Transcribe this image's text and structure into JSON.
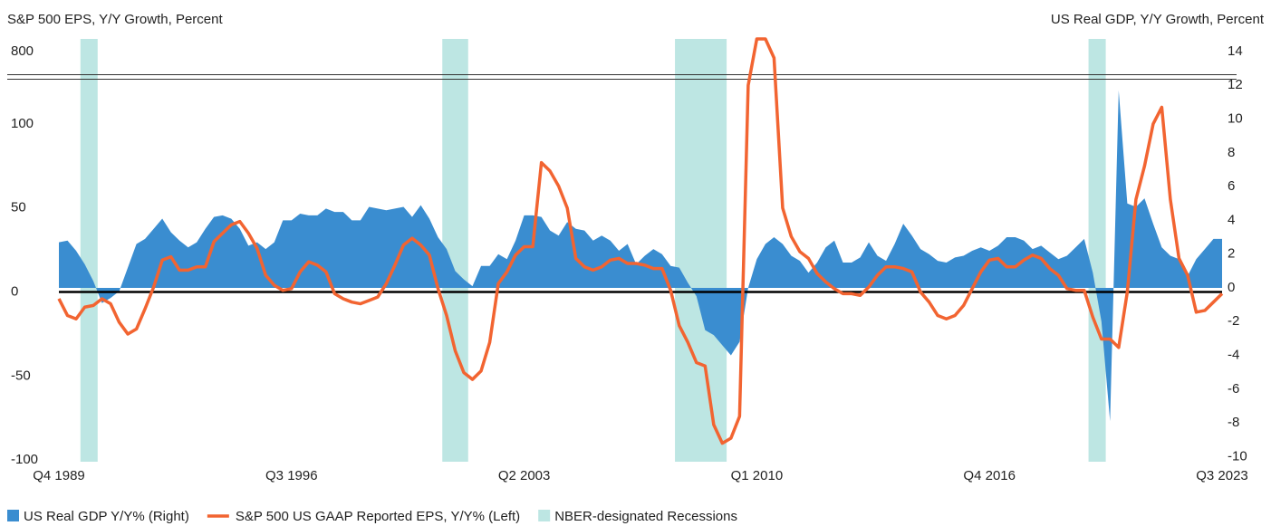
{
  "chart_data": {
    "type": "combo",
    "y_label": "S&P 500 EPS, Y/Y Growth, Percent",
    "y2_label": "US Real GDP, Y/Y Growth, Percent",
    "categories": [
      "Q4 1989",
      null,
      null,
      null,
      null,
      null,
      null,
      null,
      null,
      null,
      null,
      null,
      null,
      null,
      null,
      null,
      null,
      null,
      null,
      null,
      null,
      null,
      null,
      null,
      null,
      null,
      null,
      "Q3 1996",
      null,
      null,
      null,
      null,
      null,
      null,
      null,
      null,
      null,
      null,
      null,
      null,
      null,
      null,
      null,
      null,
      null,
      null,
      null,
      null,
      null,
      null,
      null,
      null,
      null,
      null,
      "Q2 2003",
      null,
      null,
      null,
      null,
      null,
      null,
      null,
      null,
      null,
      null,
      null,
      null,
      null,
      null,
      null,
      null,
      null,
      null,
      null,
      null,
      null,
      null,
      null,
      null,
      null,
      null,
      "Q1 2010",
      null,
      null,
      null,
      null,
      null,
      null,
      null,
      null,
      null,
      null,
      null,
      null,
      null,
      null,
      null,
      null,
      null,
      null,
      null,
      null,
      null,
      null,
      null,
      null,
      null,
      null,
      "Q4 2016",
      null,
      null,
      null,
      null,
      null,
      null,
      null,
      null,
      null,
      null,
      null,
      null,
      null,
      null,
      null,
      null,
      null,
      null,
      null,
      null,
      null,
      null,
      null,
      null,
      null,
      null,
      "Q3 2023"
    ],
    "series": [
      {
        "name": "US Real GDP Y/Y% (Right)",
        "type": "area",
        "axis": "y2",
        "color": "#3a8dd0",
        "values": [
          2.7,
          2.8,
          2.2,
          1.4,
          0.4,
          -0.9,
          -0.6,
          -0.2,
          1.2,
          2.6,
          2.9,
          3.5,
          4.1,
          3.3,
          2.8,
          2.4,
          2.7,
          3.5,
          4.2,
          4.3,
          4.1,
          3.5,
          2.5,
          2.7,
          2.3,
          2.7,
          4.0,
          4.0,
          4.4,
          4.3,
          4.3,
          4.7,
          4.5,
          4.5,
          4.0,
          4.0,
          4.8,
          4.7,
          4.6,
          4.7,
          4.8,
          4.2,
          4.9,
          4.1,
          3.0,
          2.3,
          1.0,
          0.5,
          0.1,
          1.3,
          1.3,
          2.0,
          1.7,
          2.8,
          4.3,
          4.3,
          4.2,
          3.4,
          3.1,
          3.9,
          3.5,
          3.4,
          2.8,
          3.1,
          2.8,
          2.2,
          2.6,
          1.4,
          1.9,
          2.3,
          2.0,
          1.3,
          1.2,
          0.3,
          -0.5,
          -2.5,
          -2.8,
          -3.4,
          -4.0,
          -3.2,
          0.0,
          1.7,
          2.6,
          3.0,
          2.6,
          1.9,
          1.6,
          0.9,
          1.5,
          2.4,
          2.8,
          1.5,
          1.5,
          1.8,
          2.7,
          1.9,
          1.6,
          2.6,
          3.8,
          3.1,
          2.3,
          2.0,
          1.6,
          1.5,
          1.8,
          1.9,
          2.2,
          2.4,
          2.2,
          2.5,
          3.0,
          3.0,
          2.8,
          2.3,
          2.5,
          2.1,
          1.7,
          1.9,
          2.4,
          2.9,
          0.9,
          -2.0,
          -7.9,
          11.7,
          5.0,
          4.8,
          5.3,
          3.8,
          2.4,
          1.9,
          1.7,
          0.7,
          1.7,
          2.3,
          2.9,
          2.9
        ]
      },
      {
        "name": "S&P 500 US GAAP Reported EPS, Y/Y% (Left)",
        "type": "line",
        "color": "#f26431",
        "values": [
          -4,
          -14,
          -16,
          -9,
          -8,
          -4,
          -7,
          -18,
          -25,
          -22,
          -10,
          3,
          19,
          21,
          13,
          13,
          15,
          15,
          30,
          35,
          40,
          42,
          35,
          26,
          10,
          4,
          1,
          2,
          12,
          18,
          16,
          12,
          -1,
          -4,
          -6,
          -7,
          -5,
          -3,
          5,
          16,
          28,
          32,
          28,
          22,
          2,
          -14,
          -35,
          -48,
          -52,
          -47,
          -30,
          5,
          12,
          22,
          27,
          27,
          77,
          72,
          63,
          50,
          20,
          15,
          13,
          15,
          19,
          20,
          17,
          17,
          16,
          14,
          14,
          1,
          -20,
          -30,
          -42,
          -44,
          -79,
          -90,
          -87,
          -74,
          123,
          820,
          820,
          790,
          50,
          33,
          24,
          20,
          11,
          6,
          2,
          -1,
          -1,
          -2,
          3,
          10,
          15,
          15,
          14,
          12,
          0,
          -6,
          -14,
          -16,
          -14,
          -8,
          2,
          12,
          19,
          20,
          15,
          15,
          19,
          22,
          20,
          14,
          10,
          2,
          1,
          1,
          -15,
          -28,
          -28,
          -33,
          0,
          55,
          75,
          100,
          110,
          55,
          20,
          10,
          -12,
          -11,
          -6,
          -1
        ]
      }
    ],
    "recessions": {
      "name": "NBER-designated Recessions",
      "color": "#bde6e3",
      "spans": [
        [
          3,
          4
        ],
        [
          45,
          47
        ],
        [
          72,
          77
        ],
        [
          120,
          121
        ]
      ]
    },
    "ylim": [
      -101,
      820
    ],
    "y_break": [
      128,
      760
    ],
    "yticks": [
      -100,
      -50,
      0,
      50,
      100,
      800
    ],
    "y2lim": [
      -10.3,
      14.75
    ],
    "y2ticks": [
      -10,
      -8,
      -6,
      -4,
      -2,
      0,
      2,
      4,
      6,
      8,
      10,
      12,
      14
    ],
    "grid": false
  }
}
